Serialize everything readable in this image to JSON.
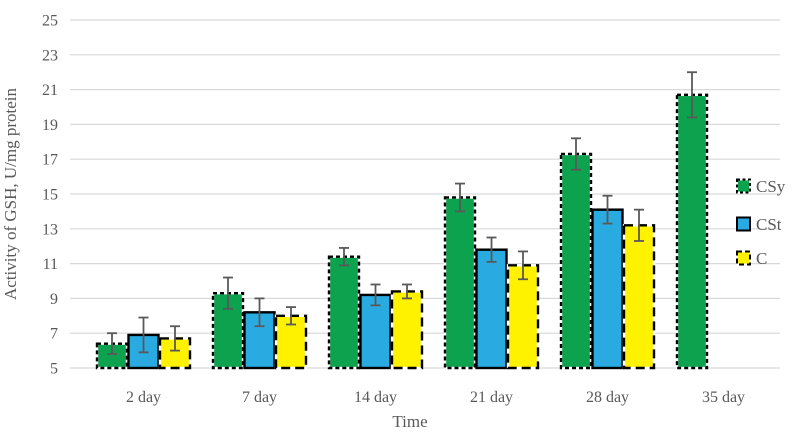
{
  "chart_data": {
    "type": "bar",
    "title": "",
    "xlabel": "Time",
    "ylabel": "Activity of GSH, U/mg protein",
    "categories": [
      "2 day",
      "7 day",
      "14 day",
      "21 day",
      "28 day",
      "35 day"
    ],
    "series": [
      {
        "name": "CSy",
        "color": "#0ca24e",
        "border": "dashed",
        "values": [
          6.4,
          9.3,
          11.4,
          14.8,
          17.3,
          20.7
        ],
        "errors": [
          0.6,
          0.9,
          0.5,
          0.8,
          0.9,
          1.3
        ]
      },
      {
        "name": "CSt",
        "color": "#29abe2",
        "border": "solid",
        "values": [
          6.9,
          8.2,
          9.2,
          11.8,
          14.1,
          null
        ],
        "errors": [
          1.0,
          0.8,
          0.6,
          0.7,
          0.8,
          null
        ]
      },
      {
        "name": "C",
        "color": "#fff200",
        "border": "long-dash",
        "values": [
          6.7,
          8.0,
          9.4,
          10.9,
          13.2,
          null
        ],
        "errors": [
          0.7,
          0.5,
          0.4,
          0.8,
          0.9,
          null
        ]
      }
    ],
    "ylim": [
      5,
      25
    ],
    "ytick_step": 2,
    "yticks": [
      5,
      7,
      9,
      11,
      13,
      15,
      17,
      19,
      21,
      23,
      25
    ],
    "grid": true,
    "legend_position": "right",
    "colors": {
      "grid": "#d9d9d9",
      "axis_text": "#595959",
      "error_bar": "#595959",
      "bar_border": "#000000",
      "background": "#ffffff"
    }
  }
}
